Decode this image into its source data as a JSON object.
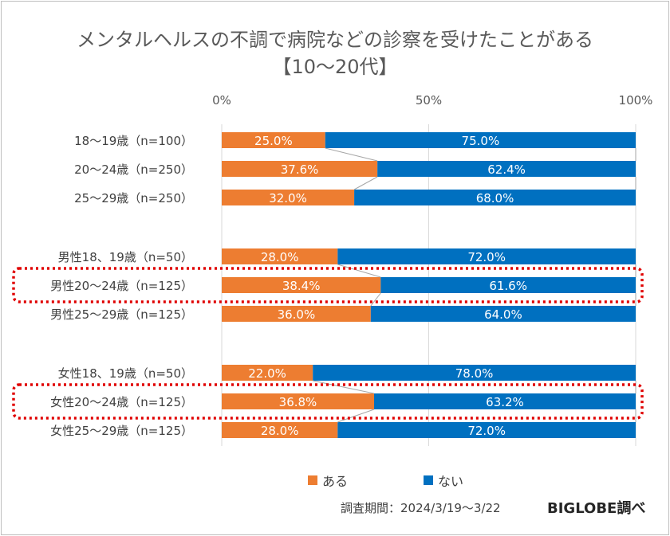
{
  "title_line1": "メンタルヘルスの不調で病院などの診察を受けたことがある",
  "title_line2": "【10～20代】",
  "footnote": "調査期間：2024/3/19～3/22",
  "brand": "BIGLOBE調べ",
  "chart_data": {
    "type": "bar",
    "orientation": "horizontal",
    "stacked": true,
    "percent": true,
    "xlim": [
      0,
      100
    ],
    "xticks": [
      "0%",
      "50%",
      "100%"
    ],
    "legend_position": "bottom",
    "categories": [
      "18～19歳（n=100）",
      "20～24歳（n=250）",
      "25～29歳（n=250）",
      "男性18、19歳（n=50）",
      "男性20～24歳（n=125）",
      "男性25～29歳（n=125）",
      "女性18、19歳（n=50）",
      "女性20～24歳（n=125）",
      "女性25～29歳（n=125）"
    ],
    "series": [
      {
        "name": "ある",
        "color": "#ED7D31",
        "values": [
          25.0,
          37.6,
          32.0,
          28.0,
          38.4,
          36.0,
          22.0,
          36.8,
          28.0
        ]
      },
      {
        "name": "ない",
        "color": "#0070C0",
        "values": [
          75.0,
          62.4,
          68.0,
          72.0,
          61.6,
          64.0,
          78.0,
          63.2,
          72.0
        ]
      }
    ],
    "highlighted": [
      "男性20～24歳（n=125）",
      "女性20～24歳（n=125）"
    ],
    "highlight_color": "#E00000"
  }
}
